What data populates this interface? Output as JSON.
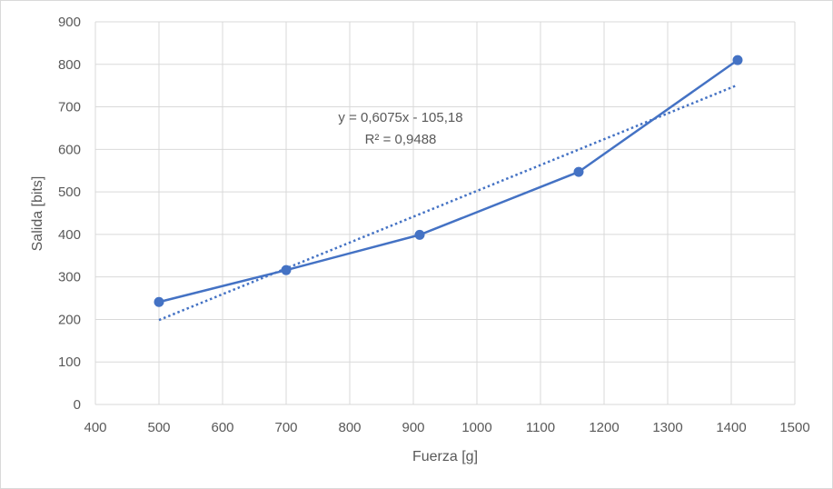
{
  "chart_data": {
    "type": "scatter",
    "xlabel": "Fuerza [g]",
    "ylabel": "Salida [bits]",
    "xlim": [
      400,
      1500
    ],
    "ylim": [
      0,
      900
    ],
    "x_ticks": [
      "400",
      "500",
      "600",
      "700",
      "800",
      "900",
      "1000",
      "1100",
      "1200",
      "1300",
      "1400",
      "1500"
    ],
    "y_ticks": [
      "0",
      "100",
      "200",
      "300",
      "400",
      "500",
      "600",
      "700",
      "800",
      "900"
    ],
    "grid": true,
    "series": [
      {
        "x": [
          500,
          700,
          910,
          1160,
          1410
        ],
        "y": [
          241,
          316,
          399,
          547,
          810
        ],
        "color": "#4472c4",
        "style": "line-with-markers"
      }
    ],
    "trendline": {
      "type": "linear",
      "slope": 0.6075,
      "intercept": -105.18,
      "x_range": [
        500,
        1410
      ],
      "style": "dotted",
      "color": "#4472c4",
      "equation_label": "y = 0,6075x - 105,18",
      "r2_label": "R² = 0,9488"
    }
  }
}
